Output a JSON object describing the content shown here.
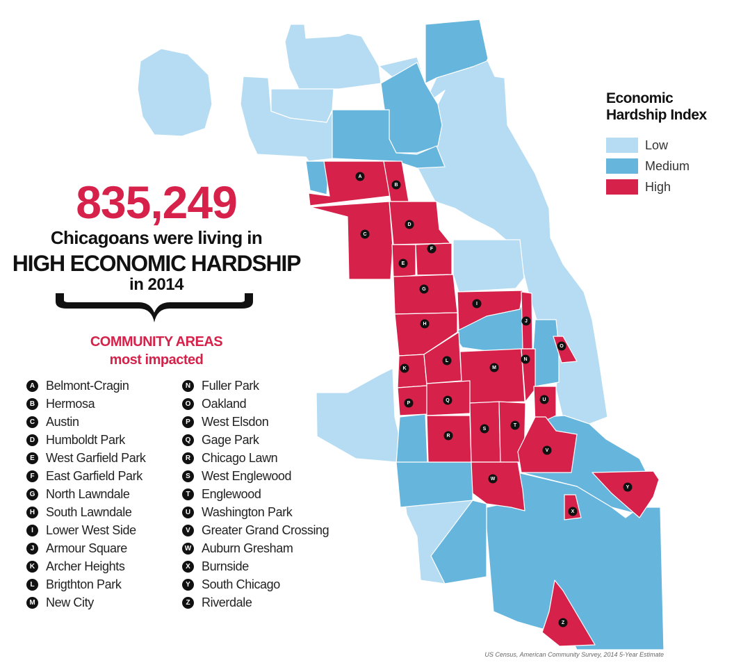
{
  "headline": {
    "number": "835,249",
    "line1": "Chicagoans were living in",
    "line2": "HIGH ECONOMIC HARDSHIP",
    "line3": "in 2014",
    "sub1": "COMMUNITY AREAS",
    "sub2": "most impacted"
  },
  "index_legend": {
    "title_line1": "Economic",
    "title_line2": "Hardship Index",
    "items": [
      {
        "label": "Low",
        "color": "#b5dcf2"
      },
      {
        "label": "Medium",
        "color": "#66b5dc"
      },
      {
        "label": "High",
        "color": "#d6224a"
      }
    ]
  },
  "colors": {
    "low": "#b5dcf2",
    "medium": "#66b5dc",
    "high": "#d6224a"
  },
  "areas_col1": [
    {
      "letter": "A",
      "name": "Belmont-Cragin"
    },
    {
      "letter": "B",
      "name": "Hermosa"
    },
    {
      "letter": "C",
      "name": "Austin"
    },
    {
      "letter": "D",
      "name": "Humboldt Park"
    },
    {
      "letter": "E",
      "name": "West Garfield Park"
    },
    {
      "letter": "F",
      "name": "East Garfield Park"
    },
    {
      "letter": "G",
      "name": "North Lawndale"
    },
    {
      "letter": "H",
      "name": "South Lawndale"
    },
    {
      "letter": "I",
      "name": "Lower West Side"
    },
    {
      "letter": "J",
      "name": "Armour Square"
    },
    {
      "letter": "K",
      "name": "Archer Heights"
    },
    {
      "letter": "L",
      "name": "Brigthton Park"
    },
    {
      "letter": "M",
      "name": "New City"
    }
  ],
  "areas_col2": [
    {
      "letter": "N",
      "name": "Fuller Park"
    },
    {
      "letter": "O",
      "name": "Oakland"
    },
    {
      "letter": "P",
      "name": "West Elsdon"
    },
    {
      "letter": "Q",
      "name": "Gage Park"
    },
    {
      "letter": "R",
      "name": "Chicago Lawn"
    },
    {
      "letter": "S",
      "name": "West Englewood"
    },
    {
      "letter": "T",
      "name": "Englewood"
    },
    {
      "letter": "U",
      "name": "Washington Park"
    },
    {
      "letter": "V",
      "name": "Greater Grand Crossing"
    },
    {
      "letter": "W",
      "name": "Auburn Gresham"
    },
    {
      "letter": "X",
      "name": "Burnside"
    },
    {
      "letter": "Y",
      "name": "South Chicago"
    },
    {
      "letter": "Z",
      "name": "Riverdale"
    }
  ],
  "source": "US Census, American Community Survey, 2014 5-Year Estimate"
}
